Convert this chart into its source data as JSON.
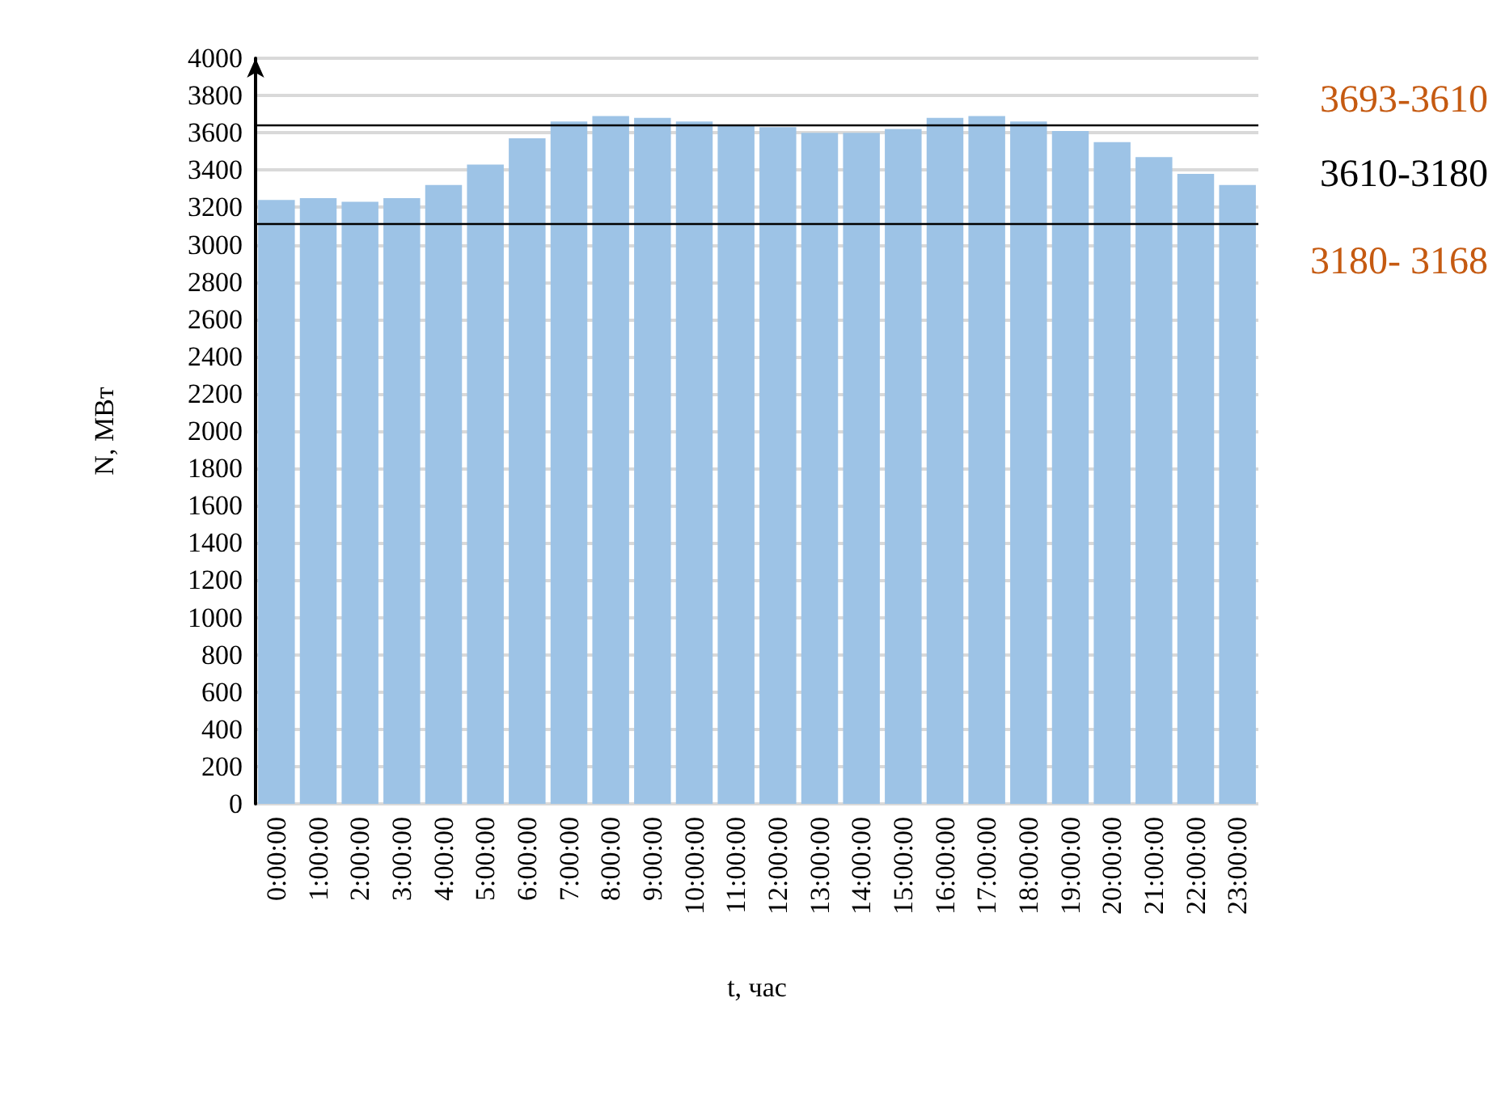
{
  "chart_data": {
    "type": "bar",
    "xlabel": "t, час",
    "ylabel": "N, МВт",
    "categories": [
      "0:00:00",
      "1:00:00",
      "2:00:00",
      "3:00:00",
      "4:00:00",
      "5:00:00",
      "6:00:00",
      "7:00:00",
      "8:00:00",
      "9:00:00",
      "10:00:00",
      "11:00:00",
      "12:00:00",
      "13:00:00",
      "14:00:00",
      "15:00:00",
      "16:00:00",
      "17:00:00",
      "18:00:00",
      "19:00:00",
      "20:00:00",
      "21:00:00",
      "22:00:00",
      "23:00:00"
    ],
    "values": [
      3240,
      3250,
      3230,
      3250,
      3320,
      3430,
      3570,
      3660,
      3690,
      3680,
      3660,
      3640,
      3630,
      3600,
      3600,
      3620,
      3680,
      3690,
      3660,
      3610,
      3550,
      3470,
      3380,
      3320
    ],
    "color": "#9dc3e6",
    "ylim": [
      0,
      4000
    ],
    "yticks": [
      0,
      200,
      400,
      600,
      800,
      1000,
      1200,
      1400,
      1600,
      1800,
      2000,
      2200,
      2400,
      2600,
      2800,
      3000,
      3200,
      3400,
      3600,
      3800,
      4000
    ],
    "grid": "y",
    "ref_lines": [
      {
        "axis": "y",
        "value": 3640,
        "color": "#000000"
      },
      {
        "axis": "y",
        "value": 3110,
        "color": "#000000"
      }
    ],
    "annotations": [
      "3693-3610",
      "3610-3180",
      "3180- 3168"
    ]
  }
}
